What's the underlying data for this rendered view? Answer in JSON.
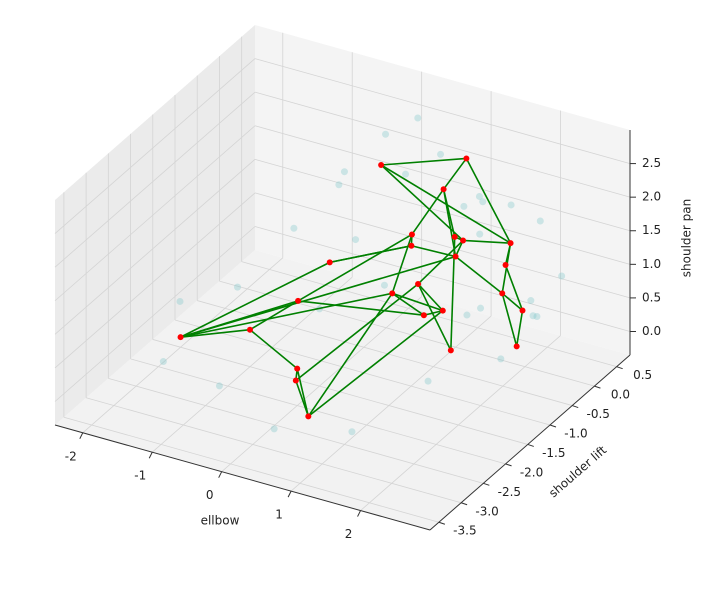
{
  "chart_data": {
    "type": "scatter3d",
    "xlabel": "ellbow",
    "ylabel": "shoulder lift",
    "zlabel": "shoulder pan",
    "xlim": [
      -2.4,
      3.0
    ],
    "ylim": [
      -3.7,
      0.8
    ],
    "zlim": [
      -0.35,
      3.0
    ],
    "xticks": [
      -2,
      -1,
      0,
      1,
      2
    ],
    "yticks": [
      0.5,
      {
        "value": 0,
        "label": "0.0"
      },
      -0.5,
      {
        "value": -1,
        "label": "-1.0"
      },
      -1.5,
      {
        "value": -2,
        "label": "-2.0"
      },
      -2.5,
      {
        "value": -3,
        "label": "-3.0"
      },
      -3.5
    ],
    "zticks": [
      {
        "value": 0,
        "label": "0.0"
      },
      0.5,
      {
        "value": 1,
        "label": "1.0"
      },
      1.5,
      {
        "value": 2,
        "label": "2.0"
      },
      2.5
    ],
    "samples": {
      "color": "#7fc6c8",
      "x": [
        1.2,
        0.4,
        1.9,
        2.3,
        2.1,
        1.5,
        0.2,
        -0.2,
        0.9,
        1.7,
        2.4,
        -1.5,
        -2.2,
        -1.8,
        0.5,
        1.3,
        -0.8,
        0.0,
        -0.6,
        -1.0,
        1.0,
        1.8,
        0.6,
        2.5,
        1.1,
        0.2,
        -1.2,
        1.6,
        0.8,
        2.0
      ],
      "y": [
        0.3,
        0.6,
        0.5,
        -0.2,
        -0.7,
        -1.4,
        0.4,
        0.3,
        0.7,
        0.6,
        0.2,
        -1.0,
        -1.2,
        -2.2,
        -3.3,
        -2.8,
        -2.5,
        -1.5,
        0.0,
        0.5,
        -1.6,
        0.0,
        -0.5,
        -0.6,
        0.1,
        -1.0,
        -0.2,
        -0.4,
        0.5,
        -1.0
      ],
      "z": [
        1.7,
        2.0,
        1.5,
        0.6,
        0.2,
        0.1,
        2.6,
        2.3,
        0.9,
        0.2,
        1.0,
        0.4,
        0.1,
        -0.1,
        0.2,
        0.1,
        0.0,
        0.8,
        1.8,
        1.2,
        1.5,
        2.0,
        2.4,
        0.9,
        0.1,
        1.6,
        0.9,
        2.3,
        1.4,
        1.1
      ]
    },
    "nodes": {
      "color": "#ff0000",
      "x": [
        1.0,
        1.3,
        0.7,
        1.6,
        1.2,
        0.5,
        1.8,
        0.9,
        1.5,
        0.6,
        1.9,
        1.1,
        0.3,
        1.4,
        0.8,
        -2.0,
        0.8,
        -1.0,
        -0.5,
        0.0,
        0.3,
        -0.3,
        -0.2,
        2.2,
        1.7
      ],
      "y": [
        0.0,
        -0.3,
        0.2,
        0.3,
        -0.6,
        -0.2,
        -0.2,
        0.4,
        -0.8,
        -0.8,
        0.1,
        -1.0,
        0.1,
        0.5,
        -0.4,
        -1.5,
        -3.0,
        -1.5,
        -1.2,
        -2.0,
        -2.5,
        -0.8,
        0.2,
        -0.5,
        -1.2
      ],
      "z": [
        1.0,
        1.5,
        1.8,
        1.2,
        0.6,
        1.3,
        0.8,
        2.2,
        1.9,
        0.8,
        0.4,
        1.2,
        0.9,
        0.7,
        0.3,
        -0.2,
        0.3,
        0.2,
        0.6,
        0.2,
        0.4,
        1.0,
        1.9,
        0.3,
        0.5
      ]
    },
    "edge_color": "#008000",
    "edges": [
      [
        0,
        1
      ],
      [
        0,
        2
      ],
      [
        1,
        3
      ],
      [
        2,
        5
      ],
      [
        3,
        6
      ],
      [
        4,
        9
      ],
      [
        5,
        12
      ],
      [
        6,
        10
      ],
      [
        7,
        2
      ],
      [
        8,
        1
      ],
      [
        9,
        14
      ],
      [
        10,
        23
      ],
      [
        11,
        4
      ],
      [
        12,
        0
      ],
      [
        13,
        3
      ],
      [
        14,
        4
      ],
      [
        15,
        17
      ],
      [
        15,
        18
      ],
      [
        15,
        21
      ],
      [
        15,
        0
      ],
      [
        15,
        9
      ],
      [
        16,
        19
      ],
      [
        16,
        20
      ],
      [
        16,
        9
      ],
      [
        16,
        4
      ],
      [
        17,
        18
      ],
      [
        18,
        5
      ],
      [
        19,
        20
      ],
      [
        20,
        11
      ],
      [
        21,
        12
      ],
      [
        22,
        7
      ],
      [
        22,
        1
      ],
      [
        23,
        6
      ],
      [
        24,
        11
      ],
      [
        24,
        8
      ],
      [
        0,
        6
      ],
      [
        1,
        11
      ],
      [
        3,
        7
      ],
      [
        5,
        9
      ],
      [
        13,
        10
      ],
      [
        2,
        8
      ],
      [
        12,
        21
      ],
      [
        17,
        19
      ],
      [
        18,
        14
      ],
      [
        22,
        3
      ]
    ]
  }
}
